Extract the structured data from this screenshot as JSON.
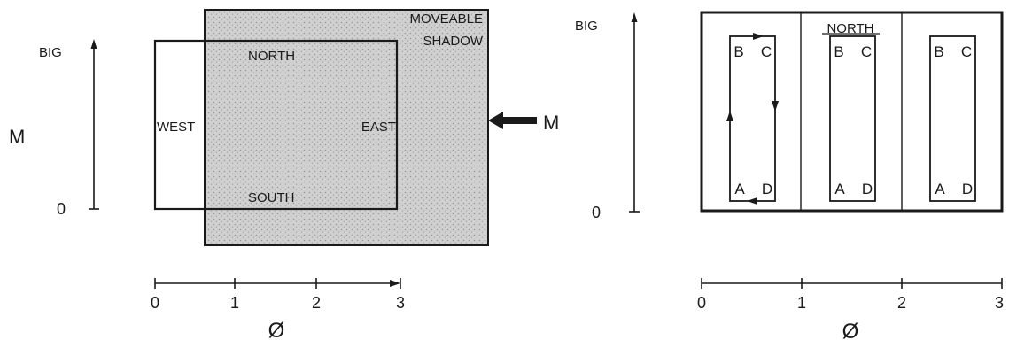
{
  "left_panel": {
    "y_axis": {
      "top_label": "BIG",
      "bottom_label": "0",
      "name": "M"
    },
    "x_axis": {
      "ticks": [
        "0",
        "1",
        "2",
        "3"
      ],
      "name": "Ø"
    },
    "shadow_label_line1": "MOVEABLE",
    "shadow_label_line2": "SHADOW",
    "north": "NORTH",
    "south": "SOUTH",
    "west": "WEST",
    "east": "EAST",
    "pointer_label": "M"
  },
  "right_panel": {
    "y_axis": {
      "top_label": "BIG",
      "bottom_label": "0"
    },
    "x_axis": {
      "ticks": [
        "0",
        "1",
        "2",
        "3"
      ],
      "name": "Ø"
    },
    "north": "NORTH",
    "cells": [
      {
        "b": "B",
        "c": "C",
        "a": "A",
        "d": "D"
      },
      {
        "b": "B",
        "c": "C",
        "a": "A",
        "d": "D"
      },
      {
        "b": "B",
        "c": "C",
        "a": "A",
        "d": "D"
      }
    ]
  },
  "colors": {
    "ink": "#1a1a1a",
    "shadow_fill": "#cfcfcf"
  }
}
